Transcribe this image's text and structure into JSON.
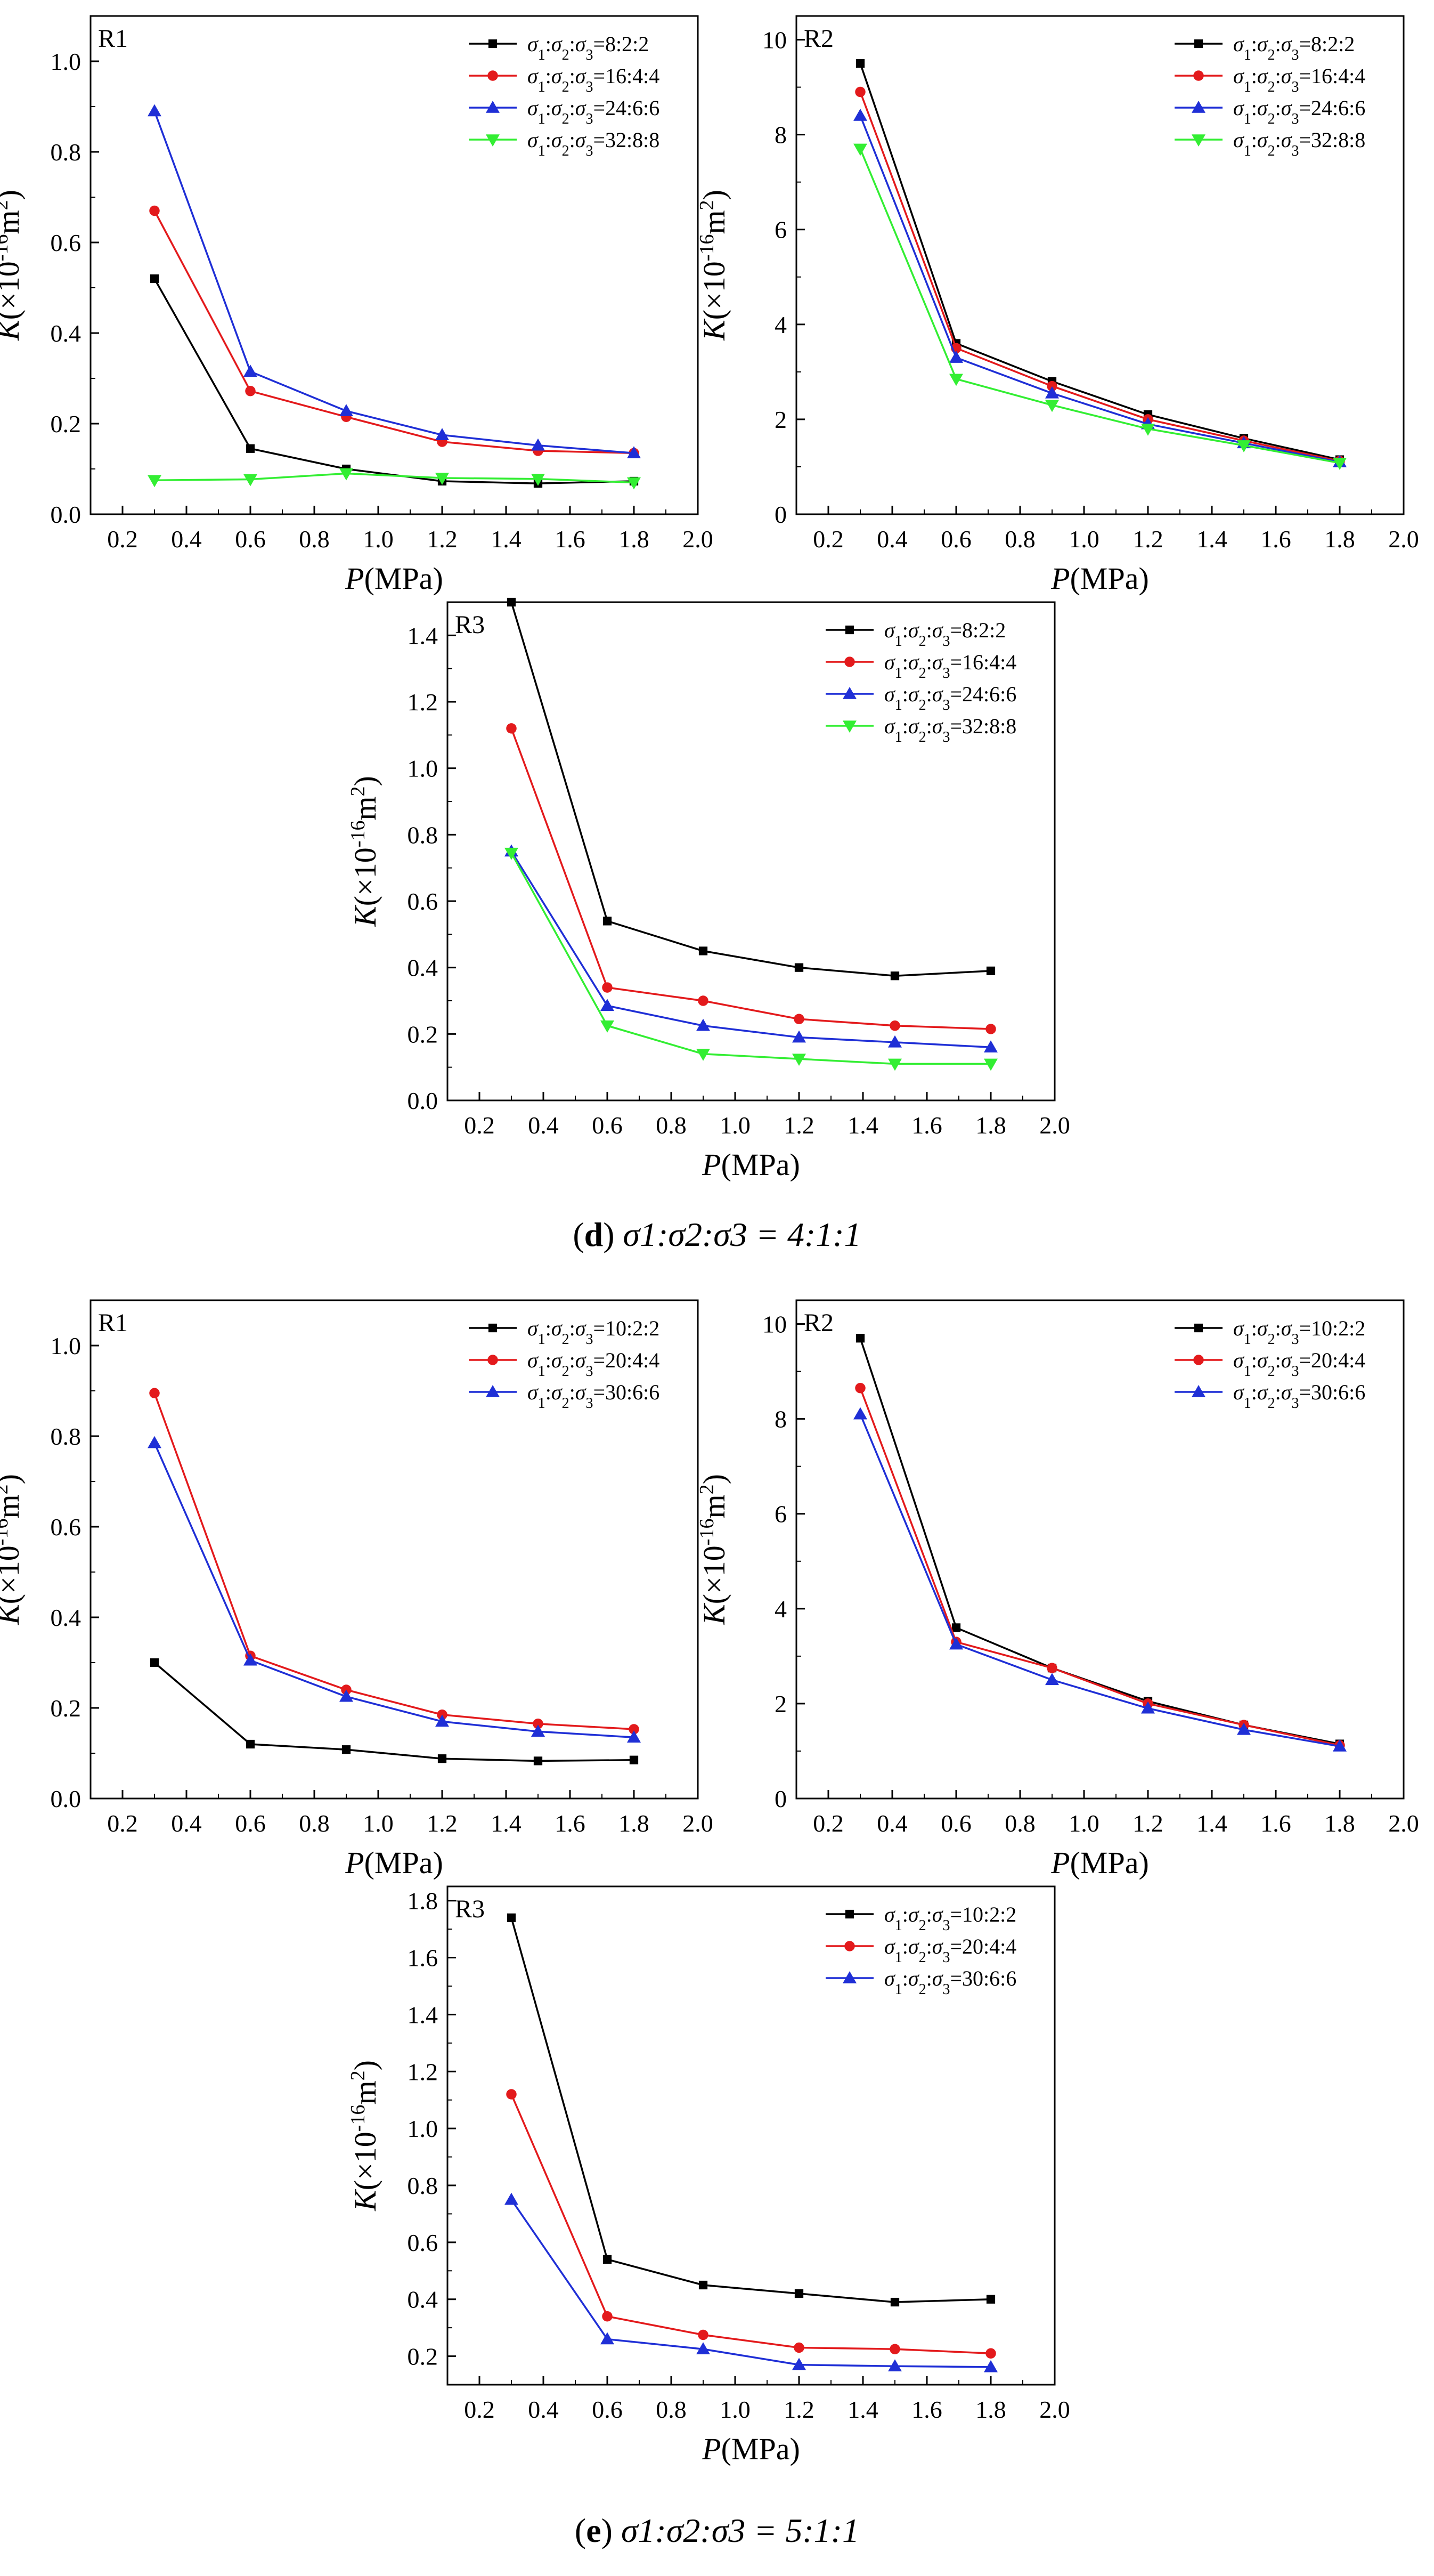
{
  "colors": {
    "black": "#000000",
    "red": "#e31a1c",
    "blue": "#1f2fd6",
    "green": "#33ee33"
  },
  "captions": [
    {
      "letter": "d",
      "text": "σ1:σ2:σ3 = 4:1:1"
    },
    {
      "letter": "e",
      "text": "σ1:σ2:σ3 = 5:1:1"
    }
  ],
  "chart_data": [
    {
      "type": "line",
      "panel": "d",
      "label": "R1",
      "xlabel": "P(MPa)",
      "ylabel": "K(×10-16m2)",
      "xlim": [
        0.1,
        2.0
      ],
      "ylim": [
        0,
        1.1
      ],
      "xticks": [
        "0.2",
        "0.4",
        "0.6",
        "0.8",
        "1.0",
        "1.2",
        "1.4",
        "1.6",
        "1.8",
        "2.0"
      ],
      "yticks": [
        "0.0",
        "0.2",
        "0.4",
        "0.6",
        "0.8",
        "1.0"
      ],
      "x": [
        0.3,
        0.6,
        0.9,
        1.2,
        1.5,
        1.8
      ],
      "series": [
        {
          "name": "σ1:σ2:σ3=8:2:2",
          "color": "black",
          "marker": "square",
          "values": [
            0.52,
            0.145,
            0.1,
            0.073,
            0.068,
            0.073
          ]
        },
        {
          "name": "σ1:σ2:σ3=16:4:4",
          "color": "red",
          "marker": "circle",
          "values": [
            0.67,
            0.272,
            0.215,
            0.16,
            0.14,
            0.135
          ]
        },
        {
          "name": "σ1:σ2:σ3=24:6:6",
          "color": "blue",
          "marker": "triangle-up",
          "values": [
            0.89,
            0.315,
            0.228,
            0.175,
            0.152,
            0.135
          ]
        },
        {
          "name": "σ1:σ2:σ3=32:8:8",
          "color": "green",
          "marker": "triangle-down",
          "values": [
            0.075,
            0.077,
            0.09,
            0.08,
            0.078,
            0.07
          ]
        }
      ]
    },
    {
      "type": "line",
      "panel": "d",
      "label": "R2",
      "xlabel": "P(MPa)",
      "ylabel": "K(×10-16m2)",
      "xlim": [
        0.1,
        2.0
      ],
      "ylim": [
        0,
        10.5
      ],
      "xticks": [
        "0.2",
        "0.4",
        "0.6",
        "0.8",
        "1.0",
        "1.2",
        "1.4",
        "1.6",
        "1.8",
        "2.0"
      ],
      "yticks": [
        "0",
        "2",
        "4",
        "6",
        "8",
        "10"
      ],
      "x": [
        0.3,
        0.6,
        0.9,
        1.2,
        1.5,
        1.8
      ],
      "series": [
        {
          "name": "σ1:σ2:σ3=8:2:2",
          "color": "black",
          "marker": "square",
          "values": [
            9.5,
            3.6,
            2.8,
            2.1,
            1.6,
            1.15
          ]
        },
        {
          "name": "σ1:σ2:σ3=16:4:4",
          "color": "red",
          "marker": "circle",
          "values": [
            8.9,
            3.5,
            2.7,
            2.0,
            1.55,
            1.12
          ]
        },
        {
          "name": "σ1:σ2:σ3=24:6:6",
          "color": "blue",
          "marker": "triangle-up",
          "values": [
            8.4,
            3.3,
            2.55,
            1.9,
            1.5,
            1.1
          ]
        },
        {
          "name": "σ1:σ2:σ3=32:8:8",
          "color": "green",
          "marker": "triangle-down",
          "values": [
            7.7,
            2.85,
            2.3,
            1.8,
            1.45,
            1.08
          ]
        }
      ]
    },
    {
      "type": "line",
      "panel": "d",
      "label": "R3",
      "xlabel": "P(MPa)",
      "ylabel": "K(×10-16m2)",
      "xlim": [
        0.1,
        2.0
      ],
      "ylim": [
        0,
        1.5
      ],
      "xticks": [
        "0.2",
        "0.4",
        "0.6",
        "0.8",
        "1.0",
        "1.2",
        "1.4",
        "1.6",
        "1.8",
        "2.0"
      ],
      "yticks": [
        "0.0",
        "0.2",
        "0.4",
        "0.6",
        "0.8",
        "1.0",
        "1.2",
        "1.4"
      ],
      "x": [
        0.3,
        0.6,
        0.9,
        1.2,
        1.5,
        1.8
      ],
      "series": [
        {
          "name": "σ1:σ2:σ3=8:2:2",
          "color": "black",
          "marker": "square",
          "values": [
            1.5,
            0.54,
            0.45,
            0.4,
            0.375,
            0.39
          ]
        },
        {
          "name": "σ1:σ2:σ3=16:4:4",
          "color": "red",
          "marker": "circle",
          "values": [
            1.12,
            0.34,
            0.3,
            0.245,
            0.225,
            0.215
          ]
        },
        {
          "name": "σ1:σ2:σ3=24:6:6",
          "color": "blue",
          "marker": "triangle-up",
          "values": [
            0.75,
            0.285,
            0.225,
            0.19,
            0.175,
            0.16
          ]
        },
        {
          "name": "σ1:σ2:σ3=32:8:8",
          "color": "green",
          "marker": "triangle-down",
          "values": [
            0.745,
            0.225,
            0.14,
            0.125,
            0.11,
            0.11
          ]
        }
      ]
    },
    {
      "type": "line",
      "panel": "e",
      "label": "R1",
      "xlabel": "P(MPa)",
      "ylabel": "K(×10-16m2)",
      "xlim": [
        0.1,
        2.0
      ],
      "ylim": [
        0,
        1.1
      ],
      "xticks": [
        "0.2",
        "0.4",
        "0.6",
        "0.8",
        "1.0",
        "1.2",
        "1.4",
        "1.6",
        "1.8",
        "2.0"
      ],
      "yticks": [
        "0.0",
        "0.2",
        "0.4",
        "0.6",
        "0.8",
        "1.0"
      ],
      "x": [
        0.3,
        0.6,
        0.9,
        1.2,
        1.5,
        1.8
      ],
      "series": [
        {
          "name": "σ1:σ2:σ3=10:2:2",
          "color": "black",
          "marker": "square",
          "values": [
            0.3,
            0.12,
            0.108,
            0.088,
            0.083,
            0.085
          ]
        },
        {
          "name": "σ1:σ2:σ3=20:4:4",
          "color": "red",
          "marker": "circle",
          "values": [
            0.895,
            0.315,
            0.24,
            0.185,
            0.165,
            0.153
          ]
        },
        {
          "name": "σ1:σ2:σ3=30:6:6",
          "color": "blue",
          "marker": "triangle-up",
          "values": [
            0.785,
            0.305,
            0.225,
            0.17,
            0.148,
            0.135
          ]
        }
      ]
    },
    {
      "type": "line",
      "panel": "e",
      "label": "R2",
      "xlabel": "P(MPa)",
      "ylabel": "K(×10-16m2)",
      "xlim": [
        0.1,
        2.0
      ],
      "ylim": [
        0,
        10.5
      ],
      "xticks": [
        "0.2",
        "0.4",
        "0.6",
        "0.8",
        "1.0",
        "1.2",
        "1.4",
        "1.6",
        "1.8",
        "2.0"
      ],
      "yticks": [
        "0",
        "2",
        "4",
        "6",
        "8",
        "10"
      ],
      "x": [
        0.3,
        0.6,
        0.9,
        1.2,
        1.5,
        1.8
      ],
      "series": [
        {
          "name": "σ1:σ2:σ3=10:2:2",
          "color": "black",
          "marker": "square",
          "values": [
            9.7,
            3.6,
            2.75,
            2.05,
            1.55,
            1.15
          ]
        },
        {
          "name": "σ1:σ2:σ3=20:4:4",
          "color": "red",
          "marker": "circle",
          "values": [
            8.65,
            3.3,
            2.75,
            2.0,
            1.55,
            1.12
          ]
        },
        {
          "name": "σ1:σ2:σ3=30:6:6",
          "color": "blue",
          "marker": "triangle-up",
          "values": [
            8.1,
            3.25,
            2.5,
            1.9,
            1.45,
            1.1
          ]
        }
      ]
    },
    {
      "type": "line",
      "panel": "e",
      "label": "R3",
      "xlabel": "P(MPa)",
      "ylabel": "K(×10-16m2)",
      "xlim": [
        0.1,
        2.0
      ],
      "ylim": [
        0.1,
        1.85
      ],
      "xticks": [
        "0.2",
        "0.4",
        "0.6",
        "0.8",
        "1.0",
        "1.2",
        "1.4",
        "1.6",
        "1.8",
        "2.0"
      ],
      "yticks": [
        "0.2",
        "0.4",
        "0.6",
        "0.8",
        "1.0",
        "1.2",
        "1.4",
        "1.6",
        "1.8"
      ],
      "x": [
        0.3,
        0.6,
        0.9,
        1.2,
        1.5,
        1.8
      ],
      "series": [
        {
          "name": "σ1:σ2:σ3=10:2:2",
          "color": "black",
          "marker": "square",
          "values": [
            1.74,
            0.54,
            0.45,
            0.42,
            0.39,
            0.4
          ]
        },
        {
          "name": "σ1:σ2:σ3=20:4:4",
          "color": "red",
          "marker": "circle",
          "values": [
            1.12,
            0.34,
            0.275,
            0.23,
            0.225,
            0.21
          ]
        },
        {
          "name": "σ1:σ2:σ3=30:6:6",
          "color": "blue",
          "marker": "triangle-up",
          "values": [
            0.75,
            0.26,
            0.225,
            0.17,
            0.165,
            0.162
          ]
        }
      ]
    }
  ]
}
